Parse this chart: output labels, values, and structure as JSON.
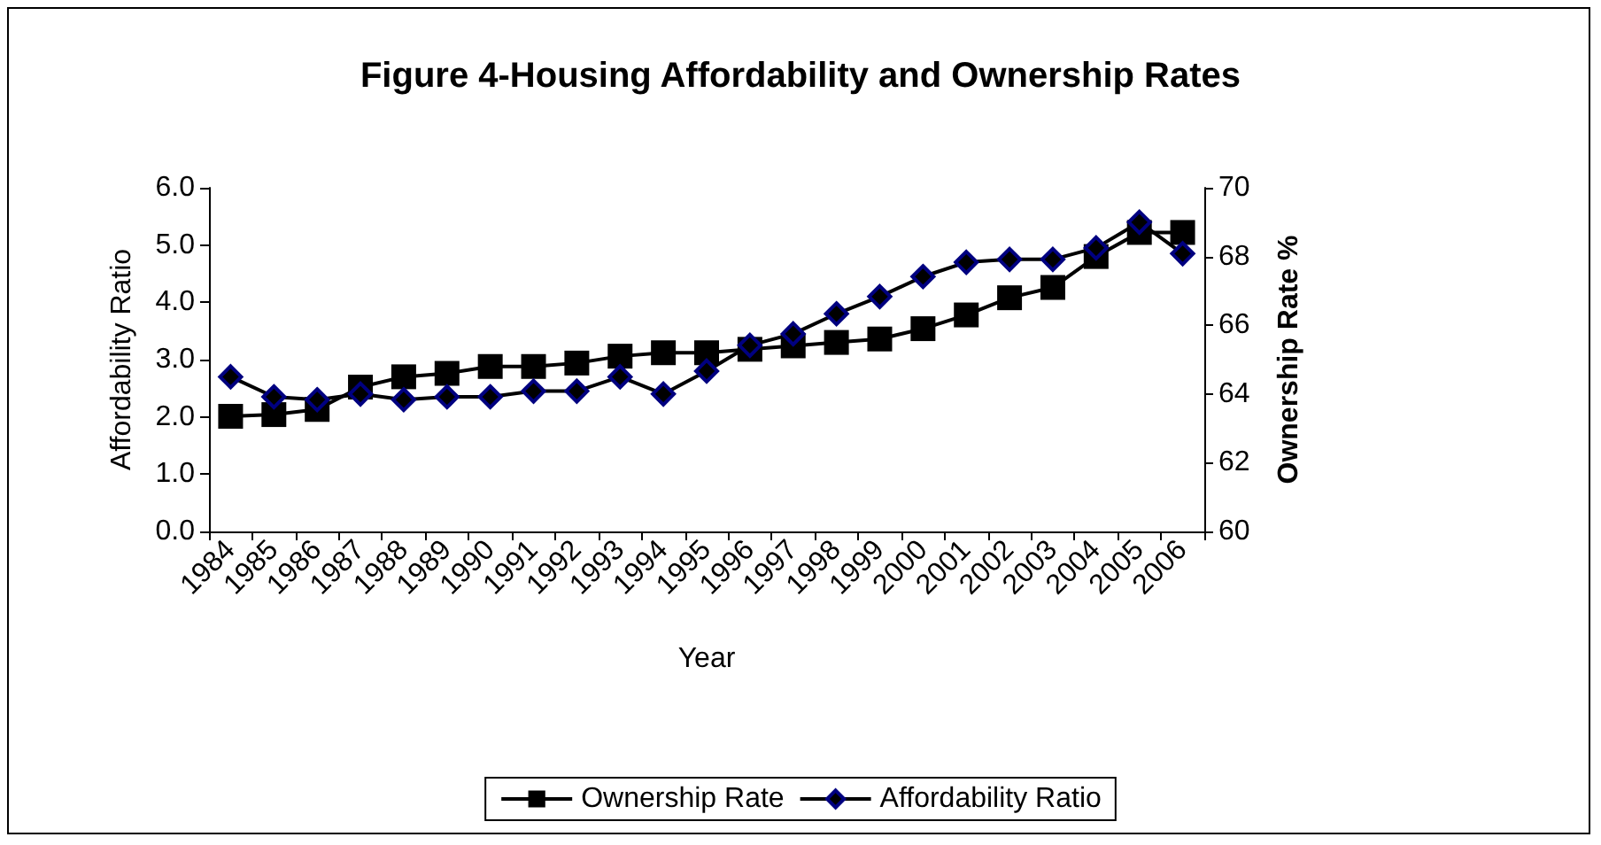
{
  "chart_data": {
    "type": "line",
    "title": "Figure 4-Housing Affordability and Ownership Rates",
    "xlabel": "Year",
    "ylabel": "Affordability Ratio",
    "y2label": "Ownership Rate %",
    "categories": [
      "1984",
      "1985",
      "1986",
      "1987",
      "1988",
      "1989",
      "1990",
      "1991",
      "1992",
      "1993",
      "1994",
      "1995",
      "1996",
      "1997",
      "1998",
      "1999",
      "2000",
      "2001",
      "2002",
      "2003",
      "2004",
      "2005",
      "2006"
    ],
    "series": [
      {
        "name": "Ownership Rate",
        "color": "#000000",
        "marker": "square",
        "axis": "y2",
        "values": [
          63.35,
          63.4,
          63.55,
          64.2,
          64.5,
          64.6,
          64.8,
          64.8,
          64.9,
          65.1,
          65.2,
          65.2,
          65.3,
          65.4,
          65.5,
          65.6,
          65.9,
          66.3,
          66.8,
          67.1,
          68.0,
          68.7,
          68.7
        ]
      },
      {
        "name": "Affordability Ratio",
        "color": "#000080",
        "marker": "diamond",
        "values": [
          2.7,
          2.35,
          2.3,
          2.4,
          2.3,
          2.35,
          2.35,
          2.45,
          2.45,
          2.7,
          2.4,
          2.8,
          3.25,
          3.45,
          3.8,
          4.1,
          4.45,
          4.7,
          4.75,
          4.75,
          4.95,
          5.4,
          4.85
        ]
      }
    ],
    "ylim": [
      0,
      6
    ],
    "yticks": [
      {
        "value": 0,
        "label": "0.0"
      },
      {
        "value": 1,
        "label": "1.0"
      },
      {
        "value": 2,
        "label": "2.0"
      },
      {
        "value": 3,
        "label": "3.0"
      },
      {
        "value": 4,
        "label": "4.0"
      },
      {
        "value": 5,
        "label": "5.0"
      },
      {
        "value": 6,
        "label": "6.0"
      }
    ],
    "y2lim": [
      60,
      70
    ],
    "y2ticks": [
      60,
      62,
      64,
      66,
      68,
      70
    ],
    "grid": false,
    "legend": "bottom",
    "line_style": "solid"
  }
}
